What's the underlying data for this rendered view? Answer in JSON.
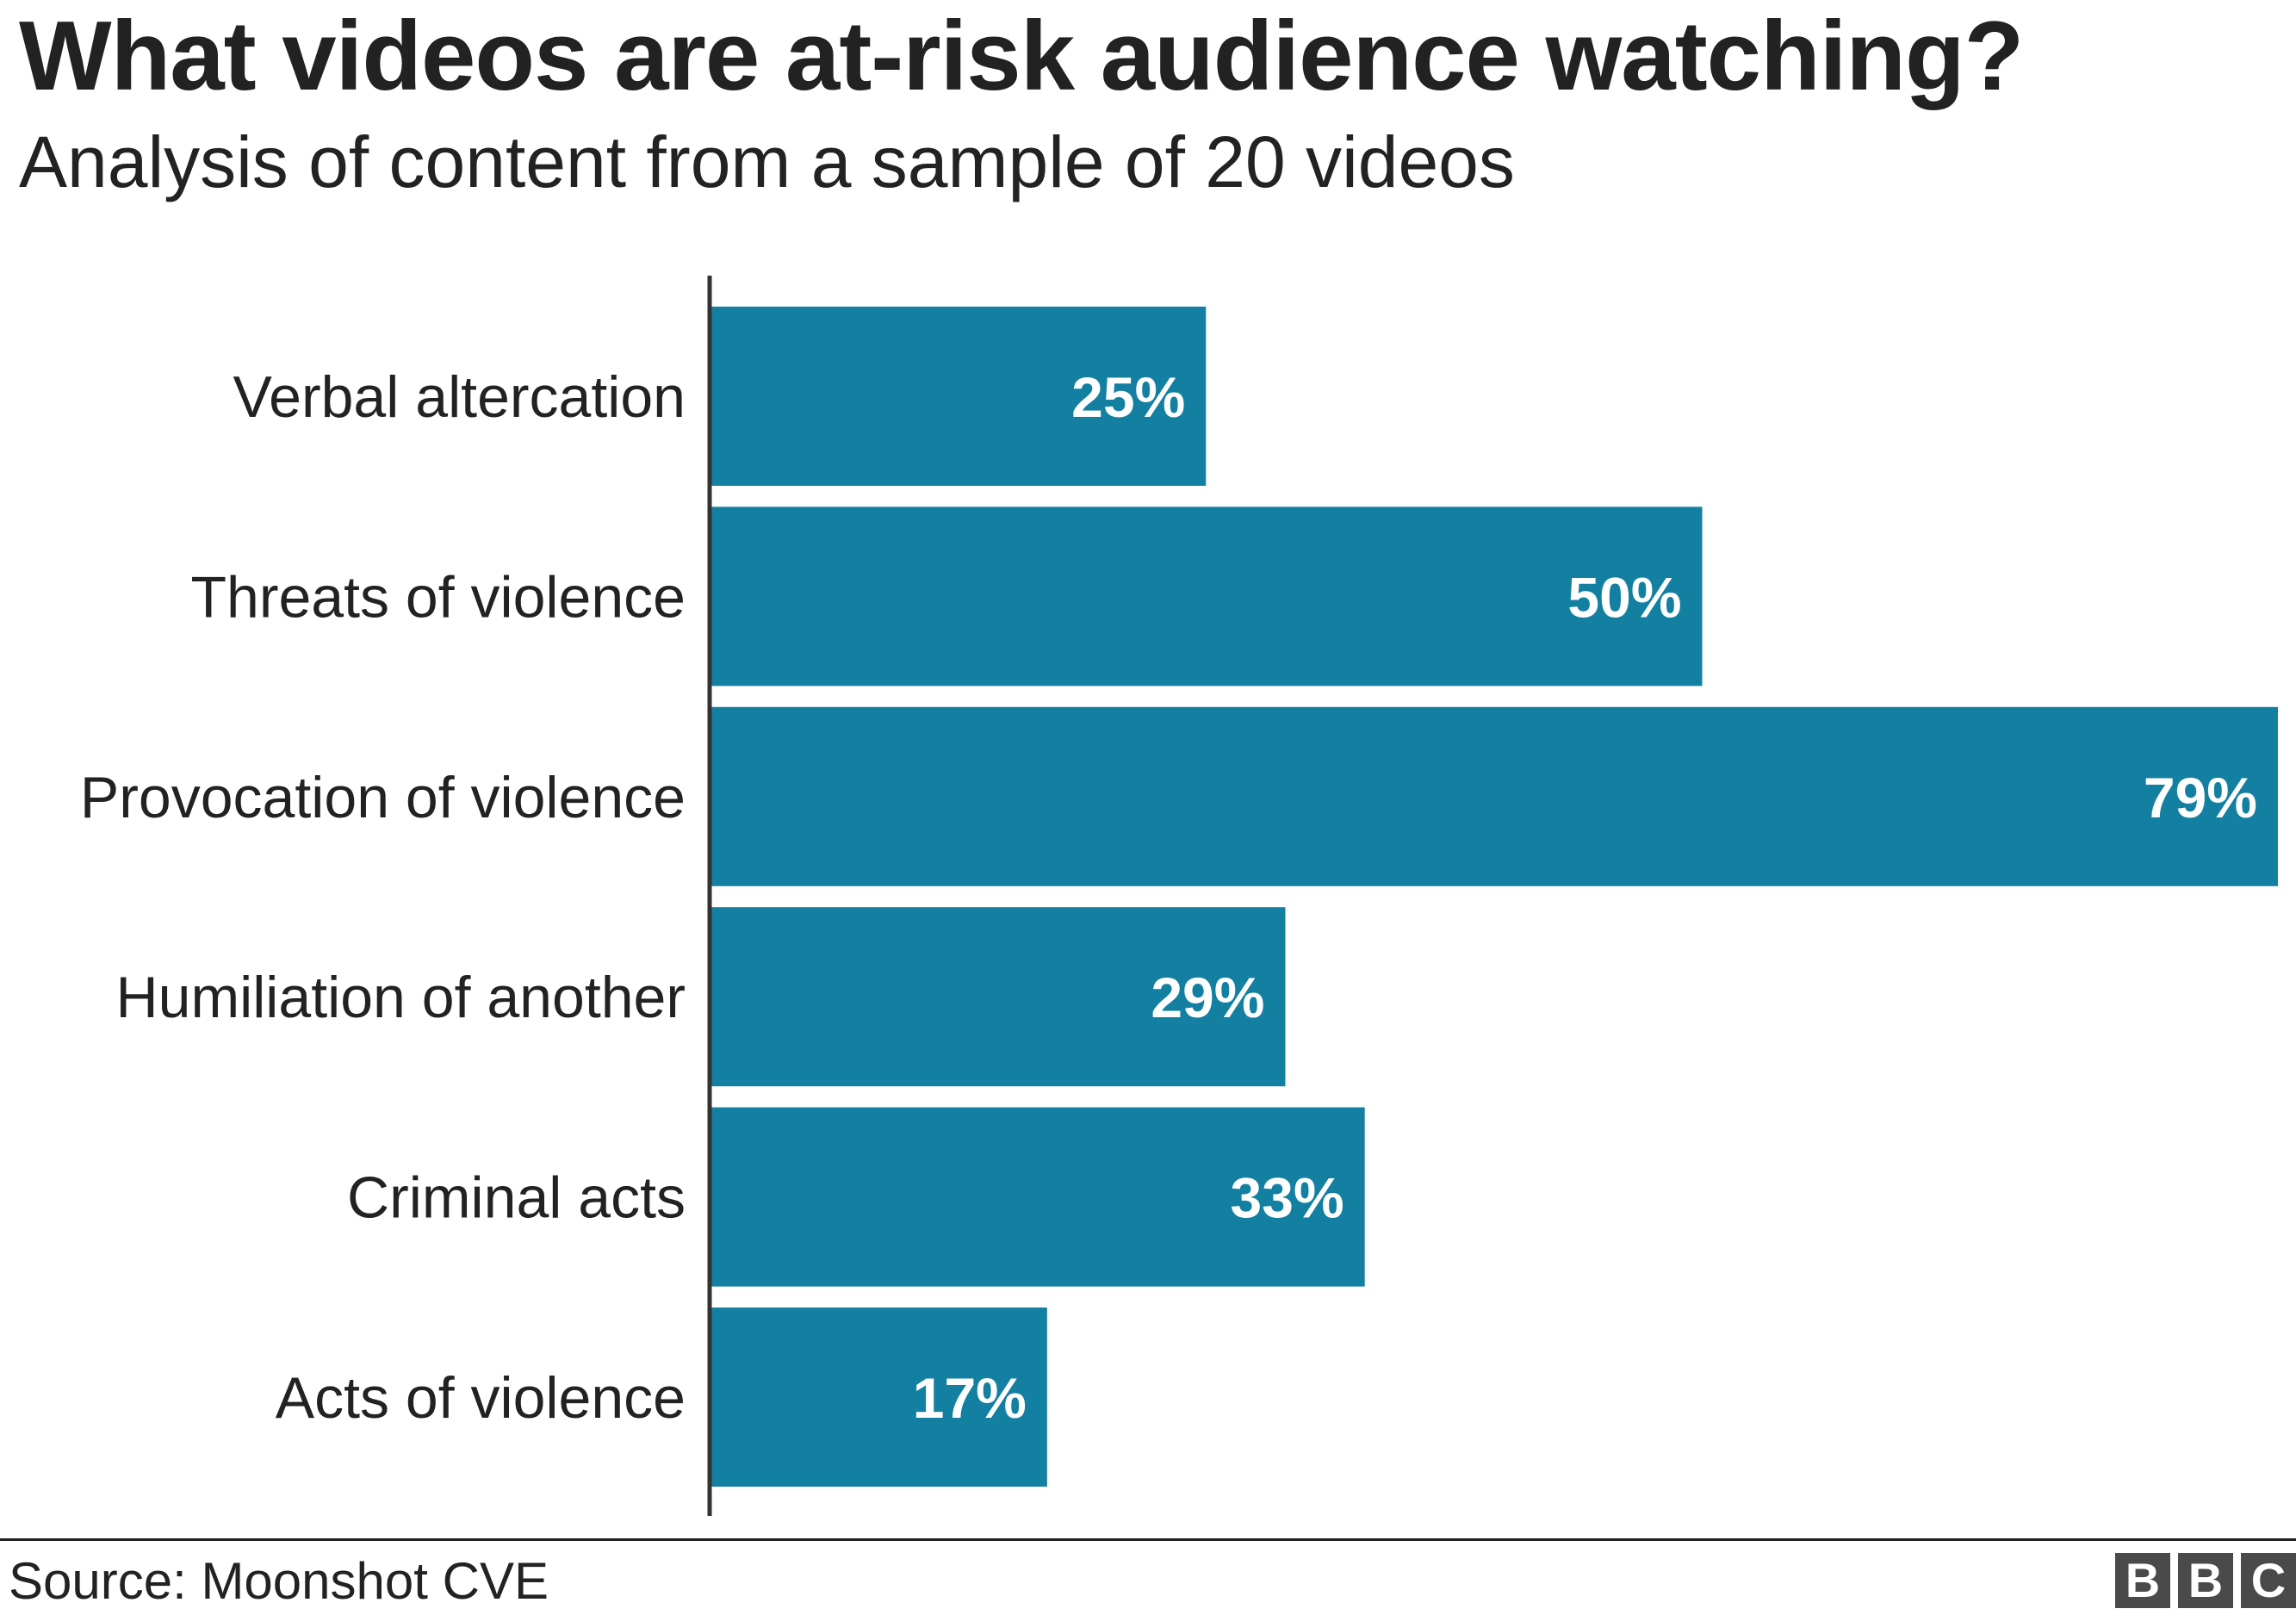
{
  "chart_data": {
    "type": "bar",
    "orientation": "horizontal",
    "title": "What videos are at-risk audience watching?",
    "subtitle": "Analysis of content from a sample of 20 videos",
    "categories": [
      "Verbal altercation",
      "Threats of violence",
      "Provocation of violence",
      "Humiliation of another",
      "Criminal acts",
      "Acts of violence"
    ],
    "values": [
      25,
      50,
      79,
      29,
      33,
      17
    ],
    "value_labels": [
      "25%",
      "50%",
      "79%",
      "29%",
      "33%",
      "17%"
    ],
    "xlim": [
      0,
      79
    ],
    "grid": false,
    "legend": "none",
    "bar_color": "#1380A1",
    "label_color": "#ffffff"
  },
  "source": "Source: Moonshot CVE",
  "logo": {
    "letters": [
      "B",
      "B",
      "C"
    ],
    "box_color": "#4a4a4a"
  }
}
